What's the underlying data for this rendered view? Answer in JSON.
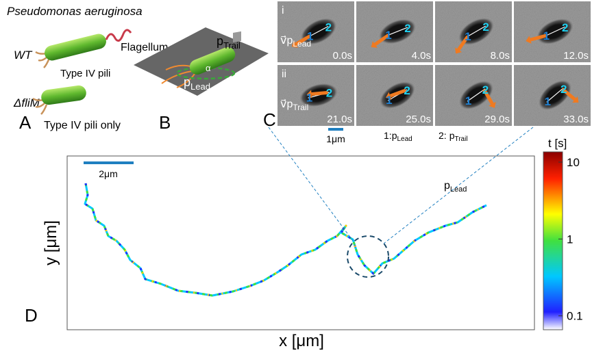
{
  "panel_a": {
    "title": "Pseudomonas aeruginosa",
    "label": "A",
    "wt": "WT",
    "flagellum": "Flagellum",
    "pili": "Type IV pili",
    "mutant": "ΔfliM",
    "pili_only": "Type IV pili only"
  },
  "panel_b": {
    "label": "B",
    "p_trail": {
      "base": "p",
      "sub": "Trail"
    },
    "angle": "α",
    "p_lead": {
      "base": "p",
      "sub": "Lead"
    }
  },
  "panel_c": {
    "label": "C",
    "rows": [
      {
        "label": "i",
        "velocity": {
          "base": "v⃗p",
          "sub": "Lead"
        },
        "times": [
          "0.0s",
          "4.0s",
          "8.0s",
          "12.0s"
        ]
      },
      {
        "label": "ii",
        "velocity": {
          "base": "v⃗p",
          "sub": "Trail"
        },
        "times": [
          "21.0s",
          "25.0s",
          "29.0s",
          "33.0s"
        ]
      }
    ],
    "pole_labels": [
      "1",
      "2"
    ],
    "scale_bar": "1μm",
    "legend": [
      {
        "num": "1:",
        "base": "p",
        "sub": "Lead"
      },
      {
        "num": "2:",
        "base": "p",
        "sub": "Trail"
      }
    ]
  },
  "panel_d": {
    "label": "D",
    "scale_bar": "2μm",
    "pole": {
      "base": "p",
      "sub": "Lead"
    },
    "x_label": "x [μm]",
    "y_label": "y [μm]",
    "colorbar": {
      "title": "t [s]",
      "scale": "log",
      "lim": [
        0.066,
        13.6
      ],
      "ticks": [
        10,
        1,
        0.1
      ]
    }
  }
}
